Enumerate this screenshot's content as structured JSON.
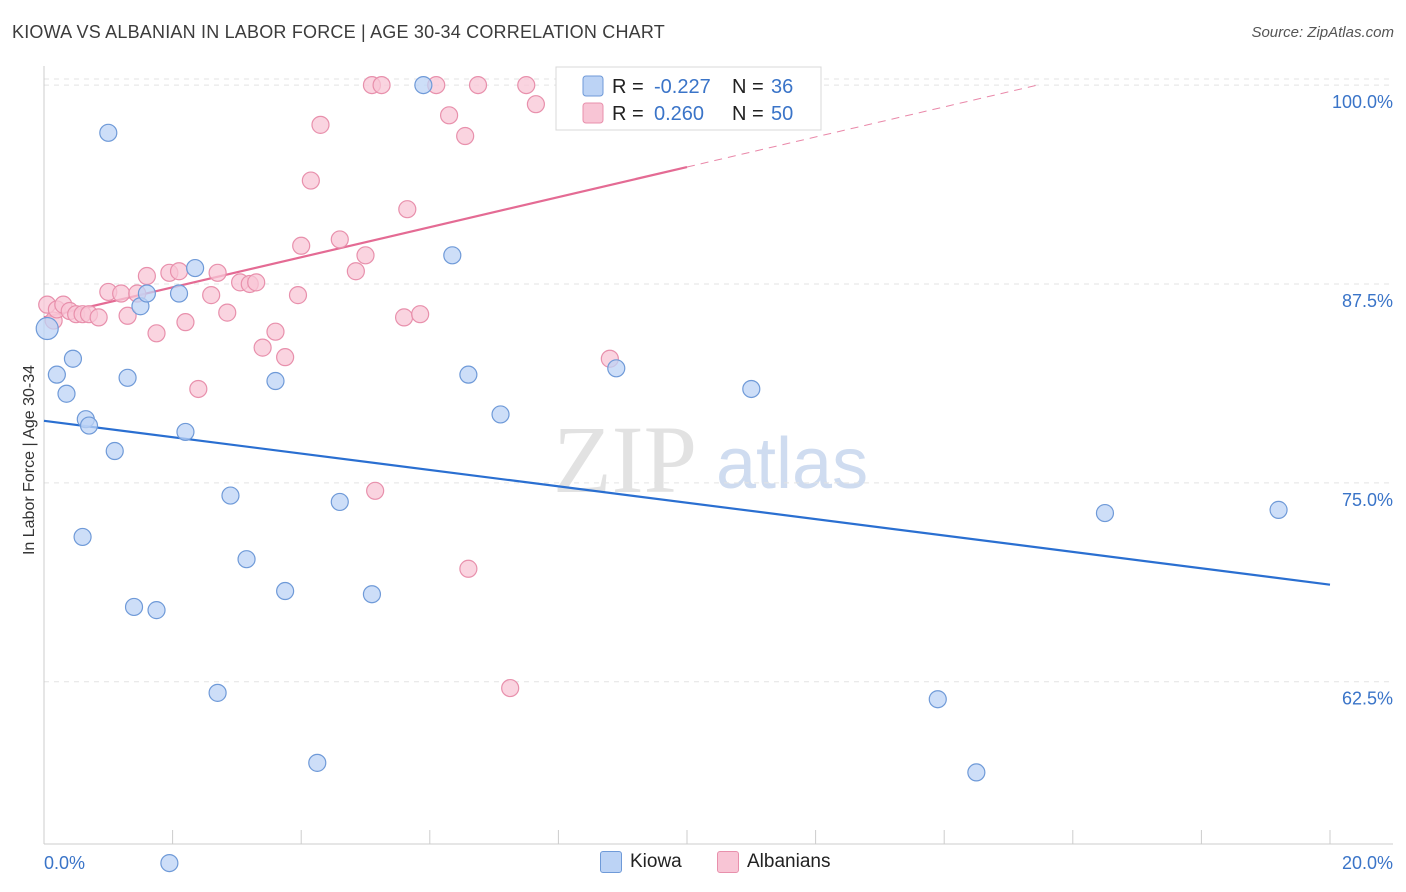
{
  "header": {
    "title": "KIOWA VS ALBANIAN IN LABOR FORCE | AGE 30-34 CORRELATION CHART",
    "source": "Source: ZipAtlas.com"
  },
  "watermark": {
    "zip": "ZIP",
    "atlas": "atlas"
  },
  "colors": {
    "kiowa_fill": "#bcd3f5",
    "kiowa_stroke": "#6f9ad8",
    "kiowa_line": "#2a6fd1",
    "albanian_fill": "#f8c5d5",
    "albanian_stroke": "#e890ac",
    "albanian_line": "#e46b94",
    "tick_text": "#3a74c8",
    "grid": "#e3e3e3"
  },
  "legend": {
    "rows": [
      {
        "r_label": "R =",
        "r_value": "-0.227",
        "n_label": "N =",
        "n_value": "36"
      },
      {
        "r_label": "R =",
        "r_value": "0.260",
        "n_label": "N =",
        "n_value": "50"
      }
    ]
  },
  "bottom_legend": {
    "kiowa": "Kiowa",
    "albanians": "Albanians"
  },
  "chart_data": {
    "type": "scatter",
    "title": "KIOWA VS ALBANIAN IN LABOR FORCE | AGE 30-34 CORRELATION CHART",
    "xlabel": "",
    "ylabel": "In Labor Force | Age 30-34",
    "xlim": [
      0,
      20
    ],
    "ylim": [
      52.3,
      101.2
    ],
    "x_tick_labels": [
      {
        "value": 0,
        "label": "0.0%"
      },
      {
        "value": 20,
        "label": "20.0%"
      }
    ],
    "y_ticks": [
      {
        "value": 100,
        "label": "100.0%"
      },
      {
        "value": 87.5,
        "label": "87.5%"
      },
      {
        "value": 75,
        "label": "75.0%"
      },
      {
        "value": 62.5,
        "label": "62.5%"
      }
    ],
    "series": [
      {
        "name": "Kiowa",
        "r": -0.227,
        "n": 36,
        "trend": {
          "x0": 0,
          "y0": 78.9,
          "x1": 20,
          "y1": 68.6,
          "solid_until": 20
        },
        "points": [
          [
            0.05,
            84.7
          ],
          [
            0.2,
            81.8
          ],
          [
            0.35,
            80.6
          ],
          [
            0.45,
            82.8
          ],
          [
            0.65,
            79.0
          ],
          [
            0.7,
            78.6
          ],
          [
            1.0,
            97.0
          ],
          [
            1.1,
            77.0
          ],
          [
            1.3,
            81.6
          ],
          [
            1.5,
            86.1
          ],
          [
            1.6,
            86.9
          ],
          [
            2.1,
            86.9
          ],
          [
            2.2,
            78.2
          ],
          [
            2.35,
            88.5
          ],
          [
            0.6,
            71.6
          ],
          [
            1.4,
            67.2
          ],
          [
            1.75,
            67.0
          ],
          [
            2.9,
            74.2
          ],
          [
            3.15,
            70.2
          ],
          [
            3.6,
            81.4
          ],
          [
            3.75,
            68.2
          ],
          [
            4.6,
            73.8
          ],
          [
            5.1,
            68.0
          ],
          [
            2.7,
            61.8
          ],
          [
            4.25,
            57.4
          ],
          [
            1.95,
            51.1
          ],
          [
            5.9,
            100.0
          ],
          [
            6.35,
            89.3
          ],
          [
            6.6,
            81.8
          ],
          [
            7.1,
            79.3
          ],
          [
            8.9,
            82.2
          ],
          [
            11.0,
            80.9
          ],
          [
            13.9,
            61.4
          ],
          [
            14.5,
            56.8
          ],
          [
            16.5,
            73.1
          ],
          [
            19.2,
            73.3
          ]
        ]
      },
      {
        "name": "Albanians",
        "r": 0.26,
        "n": 50,
        "trend": {
          "x0": 0,
          "y0": 85.4,
          "x1": 20,
          "y1": 104.3,
          "solid_until": 10
        },
        "points": [
          [
            0.05,
            86.2
          ],
          [
            0.15,
            85.2
          ],
          [
            0.2,
            85.9
          ],
          [
            0.3,
            86.2
          ],
          [
            0.4,
            85.8
          ],
          [
            0.5,
            85.6
          ],
          [
            0.6,
            85.6
          ],
          [
            0.7,
            85.6
          ],
          [
            0.85,
            85.4
          ],
          [
            1.0,
            87.0
          ],
          [
            1.2,
            86.9
          ],
          [
            1.3,
            85.5
          ],
          [
            1.45,
            86.9
          ],
          [
            1.6,
            88.0
          ],
          [
            1.75,
            84.4
          ],
          [
            1.95,
            88.2
          ],
          [
            2.1,
            88.3
          ],
          [
            2.2,
            85.1
          ],
          [
            2.4,
            80.9
          ],
          [
            2.6,
            86.8
          ],
          [
            2.7,
            88.2
          ],
          [
            2.85,
            85.7
          ],
          [
            3.05,
            87.6
          ],
          [
            3.2,
            87.5
          ],
          [
            3.3,
            87.6
          ],
          [
            3.4,
            83.5
          ],
          [
            3.6,
            84.5
          ],
          [
            3.75,
            82.9
          ],
          [
            3.95,
            86.8
          ],
          [
            4.0,
            89.9
          ],
          [
            4.15,
            94.0
          ],
          [
            4.3,
            97.5
          ],
          [
            4.6,
            90.3
          ],
          [
            4.85,
            88.3
          ],
          [
            5.0,
            89.3
          ],
          [
            5.15,
            74.5
          ],
          [
            5.1,
            100.0
          ],
          [
            5.25,
            100.0
          ],
          [
            5.6,
            85.4
          ],
          [
            5.65,
            92.2
          ],
          [
            5.85,
            85.6
          ],
          [
            6.1,
            100.0
          ],
          [
            6.3,
            98.1
          ],
          [
            6.55,
            96.8
          ],
          [
            6.75,
            100.0
          ],
          [
            6.6,
            69.6
          ],
          [
            7.25,
            62.1
          ],
          [
            7.5,
            100.0
          ],
          [
            7.65,
            98.8
          ],
          [
            8.8,
            82.8
          ]
        ]
      }
    ]
  }
}
